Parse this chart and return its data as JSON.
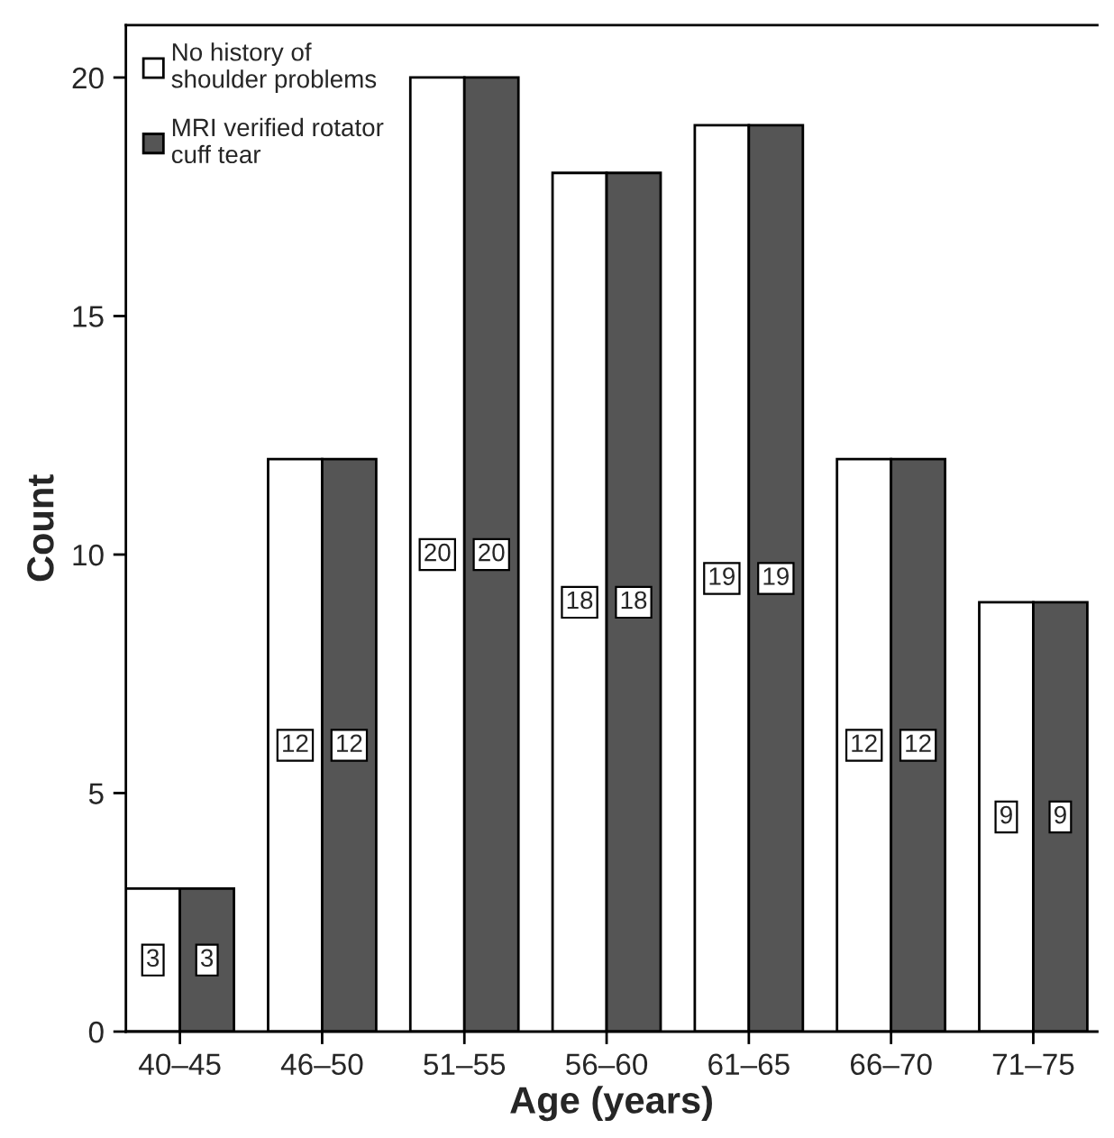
{
  "chart_data": {
    "type": "bar",
    "xlabel": "Age (years)",
    "ylabel": "Count",
    "categories": [
      "40–45",
      "46–50",
      "51–55",
      "56–60",
      "61–65",
      "66–70",
      "71–75"
    ],
    "series": [
      {
        "name": "No history of\nshoulder problems",
        "color": "#ffffff",
        "values": [
          3,
          12,
          20,
          18,
          19,
          12,
          9
        ]
      },
      {
        "name": "MRI verified rotator\ncuff tear",
        "color": "#555555",
        "values": [
          3,
          12,
          20,
          18,
          19,
          12,
          9
        ]
      }
    ],
    "ylim": [
      0,
      21.1
    ],
    "yticks": [
      0,
      5,
      10,
      15,
      20
    ],
    "data_labels": true,
    "grid": false,
    "legend": "top left"
  }
}
